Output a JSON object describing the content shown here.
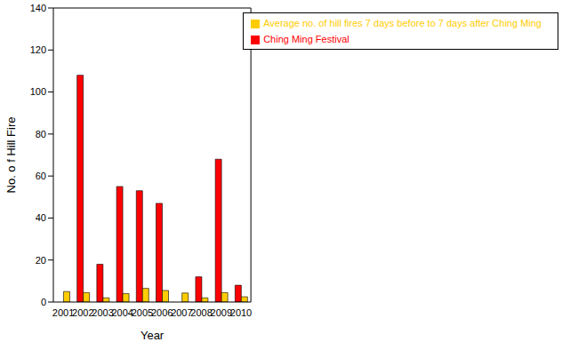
{
  "chart_data": {
    "type": "bar",
    "x_label": "Year",
    "y_label": "No. o f Hill Fire",
    "categories": [
      "2001",
      "2002",
      "2003",
      "2004",
      "2005",
      "2006",
      "2007",
      "2008",
      "2009",
      "2010"
    ],
    "series": [
      {
        "name": "Ching Ming Festival",
        "color": "#ff0000",
        "values": [
          0,
          108,
          18,
          55,
          53,
          47,
          0,
          12,
          68,
          8
        ]
      },
      {
        "name": "Average no. of hill fires 7 days before to 7 days after Ching Ming",
        "color": "#ffcc00",
        "values": [
          5,
          4.5,
          2,
          4,
          6.5,
          5.5,
          4.3,
          2,
          4.5,
          2.5
        ]
      }
    ],
    "ylim": [
      0,
      140
    ],
    "yticks": [
      0,
      20,
      40,
      60,
      80,
      100,
      120,
      140
    ],
    "grid": false,
    "legend": "upper right"
  }
}
